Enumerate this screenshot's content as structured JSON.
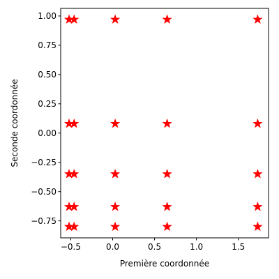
{
  "chart_data": {
    "type": "scatter",
    "title": "",
    "xlabel": "Première coordonnée",
    "ylabel": "Seconde coordonnée",
    "xlim": [
      -0.62,
      1.86
    ],
    "ylim": [
      -0.895,
      1.065
    ],
    "x_ticks": [
      "−0.5",
      "0.0",
      "0.5",
      "1.0",
      "1.5"
    ],
    "x_tick_values": [
      -0.5,
      0.0,
      0.5,
      1.0,
      1.5
    ],
    "y_ticks": [
      "−0.75",
      "−0.50",
      "−0.25",
      "0.00",
      "0.25",
      "0.50",
      "0.75",
      "1.00"
    ],
    "y_tick_values": [
      -0.75,
      -0.5,
      -0.25,
      0.0,
      0.25,
      0.5,
      0.75,
      1.0
    ],
    "marker": "star",
    "marker_color": "#ff0000",
    "grid": false,
    "legend": "none",
    "x_values": [
      -0.52,
      -0.46,
      0.03,
      0.65,
      1.73
    ],
    "y_values": [
      0.97,
      0.08,
      -0.35,
      -0.63,
      -0.8
    ],
    "points": [
      {
        "x": -0.52,
        "y": 0.97
      },
      {
        "x": -0.46,
        "y": 0.97
      },
      {
        "x": 0.03,
        "y": 0.97
      },
      {
        "x": 0.65,
        "y": 0.97
      },
      {
        "x": 1.73,
        "y": 0.97
      },
      {
        "x": -0.52,
        "y": 0.08
      },
      {
        "x": -0.46,
        "y": 0.08
      },
      {
        "x": 0.03,
        "y": 0.08
      },
      {
        "x": 0.65,
        "y": 0.08
      },
      {
        "x": 1.73,
        "y": 0.08
      },
      {
        "x": -0.52,
        "y": -0.35
      },
      {
        "x": -0.46,
        "y": -0.35
      },
      {
        "x": 0.03,
        "y": -0.35
      },
      {
        "x": 0.65,
        "y": -0.35
      },
      {
        "x": 1.73,
        "y": -0.35
      },
      {
        "x": -0.52,
        "y": -0.63
      },
      {
        "x": -0.46,
        "y": -0.63
      },
      {
        "x": 0.03,
        "y": -0.63
      },
      {
        "x": 0.65,
        "y": -0.63
      },
      {
        "x": 1.73,
        "y": -0.63
      },
      {
        "x": -0.52,
        "y": -0.8
      },
      {
        "x": -0.46,
        "y": -0.8
      },
      {
        "x": 0.03,
        "y": -0.8
      },
      {
        "x": 0.65,
        "y": -0.8
      },
      {
        "x": 1.73,
        "y": -0.8
      }
    ]
  }
}
